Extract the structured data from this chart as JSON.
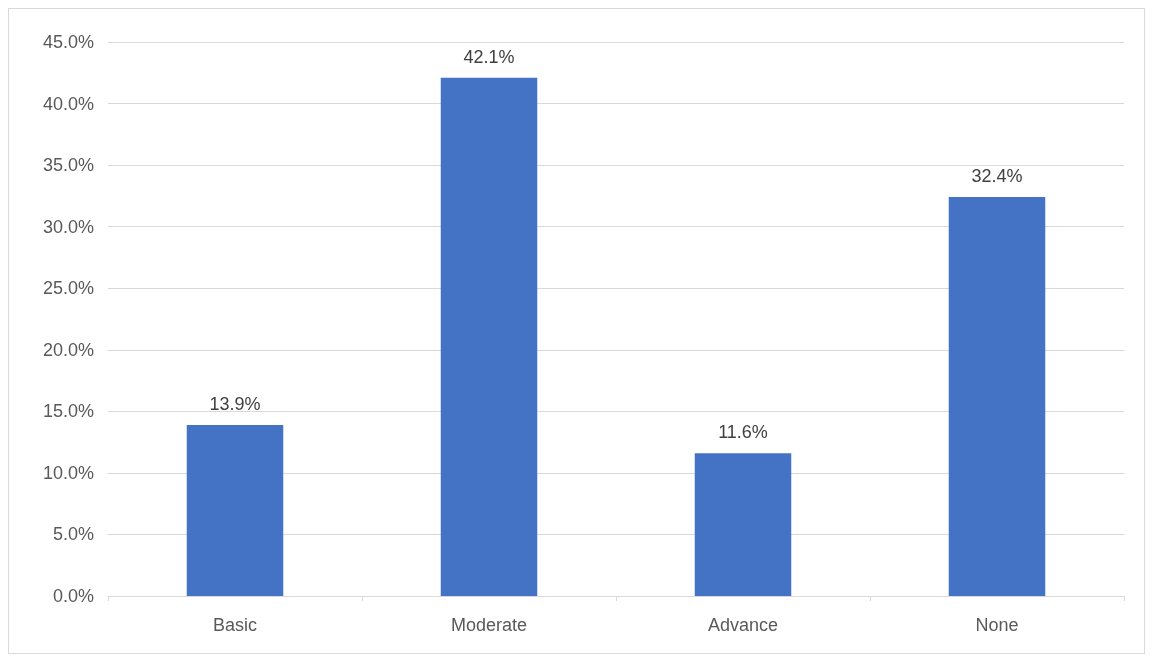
{
  "chart_data": {
    "type": "bar",
    "categories": [
      "Basic",
      "Moderate",
      "Advance",
      "None"
    ],
    "values": [
      13.9,
      42.1,
      11.6,
      32.4
    ],
    "color": "#4472c4",
    "value_labels": [
      "13.9%",
      "42.1%",
      "11.6%",
      "32.4%"
    ],
    "ylim": [
      0,
      45
    ],
    "yticks": [
      {
        "value": 0,
        "label": "0.0%"
      },
      {
        "value": 5,
        "label": "5.0%"
      },
      {
        "value": 10,
        "label": "10.0%"
      },
      {
        "value": 15,
        "label": "15.0%"
      },
      {
        "value": 20,
        "label": "20.0%"
      },
      {
        "value": 25,
        "label": "25.0%"
      },
      {
        "value": 30,
        "label": "30.0%"
      },
      {
        "value": 35,
        "label": "35.0%"
      },
      {
        "value": 40,
        "label": "40.0%"
      },
      {
        "value": 45,
        "label": "45.0%"
      }
    ],
    "grid": "y"
  }
}
